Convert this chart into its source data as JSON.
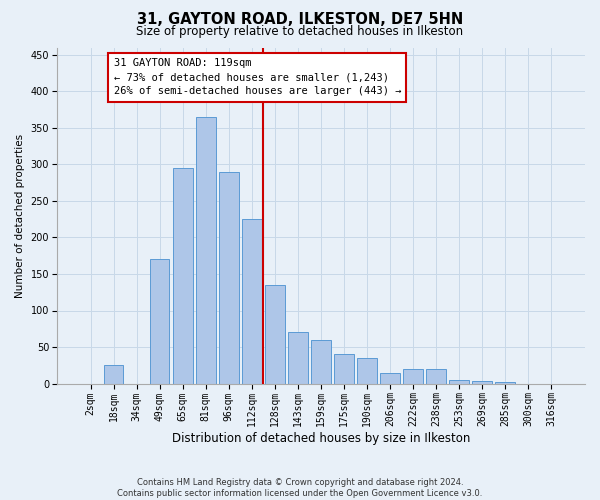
{
  "title1": "31, GAYTON ROAD, ILKESTON, DE7 5HN",
  "title2": "Size of property relative to detached houses in Ilkeston",
  "xlabel": "Distribution of detached houses by size in Ilkeston",
  "ylabel": "Number of detached properties",
  "footer": "Contains HM Land Registry data © Crown copyright and database right 2024.\nContains public sector information licensed under the Open Government Licence v3.0.",
  "categories": [
    "2sqm",
    "18sqm",
    "34sqm",
    "49sqm",
    "65sqm",
    "81sqm",
    "96sqm",
    "112sqm",
    "128sqm",
    "143sqm",
    "159sqm",
    "175sqm",
    "190sqm",
    "206sqm",
    "222sqm",
    "238sqm",
    "253sqm",
    "269sqm",
    "285sqm",
    "300sqm",
    "316sqm"
  ],
  "values": [
    0,
    25,
    0,
    170,
    295,
    365,
    290,
    225,
    135,
    70,
    60,
    40,
    35,
    15,
    20,
    20,
    5,
    3,
    2,
    0,
    0
  ],
  "bar_color": "#aec6e8",
  "bar_edge_color": "#5b9bd5",
  "vline_pos": 7.5,
  "vline_color": "#cc0000",
  "annotation_title": "31 GAYTON ROAD: 119sqm",
  "annotation_line1": "← 73% of detached houses are smaller (1,243)",
  "annotation_line2": "26% of semi-detached houses are larger (443) →",
  "annotation_box_color": "#cc0000",
  "annotation_bg": "#ffffff",
  "ylim": [
    0,
    460
  ],
  "yticks": [
    0,
    50,
    100,
    150,
    200,
    250,
    300,
    350,
    400,
    450
  ],
  "grid_color": "#c8d8e8",
  "bg_color": "#e8f0f8",
  "title1_fontsize": 10.5,
  "title2_fontsize": 8.5,
  "xlabel_fontsize": 8.5,
  "ylabel_fontsize": 7.5,
  "tick_fontsize": 7,
  "annotation_fontsize": 7.5,
  "footer_fontsize": 6
}
